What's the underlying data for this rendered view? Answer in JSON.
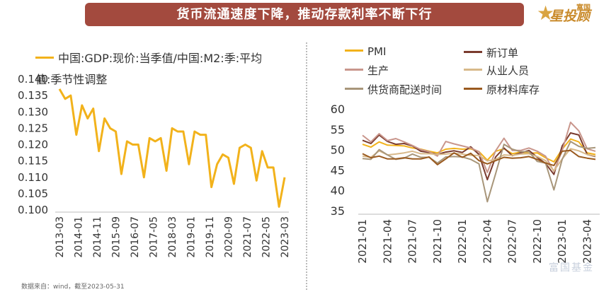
{
  "header": {
    "title": "货币流通速度下降，推动存款利率不断下行"
  },
  "logo": {
    "brand_small": "富国",
    "brand_big": "星投顾"
  },
  "footnote": "数据来自：wind，截至2023-05-31",
  "watermark": "富国基金",
  "colors": {
    "banner": "#a34a3e",
    "pmi": "#f2b21b",
    "new_orders": "#7a3b2e",
    "production": "#c9968c",
    "employment": "#d8b98a",
    "supplier": "#a8967a",
    "raw_inventory": "#9a5a1f"
  },
  "chart_data": [
    {
      "type": "line",
      "legend_text": "中国:GDP:现价:当季值/中国:M2:季:平均值:季节性调整",
      "legend_line1": "中国:GDP:现价:当季值/中国:M2:季:平均",
      "legend_line2": "值:季节性调整",
      "ylim": [
        0.1,
        0.14
      ],
      "yticks": [
        "0.140",
        "0.135",
        "0.130",
        "0.125",
        "0.120",
        "0.115",
        "0.110",
        "0.105",
        "0.100"
      ],
      "xticks": [
        "2013-03",
        "2014-01",
        "2014-11",
        "2015-09",
        "2016-07",
        "2017-05",
        "2018-03",
        "2019-01",
        "2019-11",
        "2020-09",
        "2021-07",
        "2022-05",
        "2023-03"
      ],
      "series": [
        {
          "name": "中国:GDP:现价:当季值/中国:M2:季:平均值:季节性调整",
          "values": [
            0.137,
            0.134,
            0.135,
            0.123,
            0.132,
            0.128,
            0.131,
            0.118,
            0.128,
            0.125,
            0.124,
            0.111,
            0.121,
            0.12,
            0.12,
            0.11,
            0.122,
            0.121,
            0.122,
            0.112,
            0.125,
            0.124,
            0.124,
            0.114,
            0.124,
            0.123,
            0.123,
            0.107,
            0.114,
            0.117,
            0.116,
            0.108,
            0.119,
            0.12,
            0.119,
            0.109,
            0.118,
            0.113,
            0.113,
            0.101,
            0.11
          ]
        }
      ]
    },
    {
      "type": "line",
      "ylim": [
        35,
        60
      ],
      "yticks": [
        "60",
        "55",
        "50",
        "45",
        "40",
        "35"
      ],
      "xticks": [
        "2021-01",
        "2021-04",
        "2021-07",
        "2021-10",
        "2022-01",
        "2022-04",
        "2022-07",
        "2022-10",
        "2023-01",
        "2023-04"
      ],
      "legend": [
        "PMI",
        "新订单",
        "生产",
        "从业人员",
        "供货商配送时间",
        "原材料库存"
      ],
      "series": [
        {
          "name": "PMI",
          "values": [
            51.3,
            50.6,
            51.9,
            51.1,
            51.0,
            50.9,
            50.4,
            50.1,
            49.6,
            49.2,
            50.1,
            50.3,
            50.1,
            50.2,
            49.5,
            47.4,
            49.6,
            50.2,
            49.0,
            49.4,
            49.1,
            49.2,
            48.0,
            47.0,
            50.1,
            52.6,
            51.9,
            49.2,
            48.8
          ]
        },
        {
          "name": "新订单",
          "values": [
            52.3,
            51.5,
            53.6,
            52.0,
            51.3,
            51.5,
            50.9,
            49.6,
            49.3,
            48.8,
            49.4,
            49.7,
            49.3,
            50.7,
            48.8,
            42.6,
            48.2,
            50.4,
            48.5,
            49.2,
            49.8,
            48.1,
            46.6,
            43.9,
            50.9,
            54.1,
            53.6,
            48.8,
            48.3
          ]
        },
        {
          "name": "生产",
          "values": [
            53.5,
            51.9,
            53.9,
            52.2,
            52.7,
            51.9,
            51.0,
            50.0,
            49.5,
            48.4,
            52.0,
            51.4,
            50.9,
            50.4,
            49.5,
            44.4,
            49.7,
            52.8,
            49.8,
            49.8,
            50.4,
            49.6,
            48.4,
            44.6,
            49.8,
            56.7,
            54.6,
            50.2,
            49.6
          ]
        },
        {
          "name": "从业人员",
          "values": [
            48.4,
            48.1,
            49.7,
            48.7,
            48.9,
            49.2,
            49.6,
            49.0,
            49.0,
            48.8,
            48.9,
            49.1,
            48.9,
            48.6,
            48.6,
            47.2,
            47.6,
            48.7,
            48.6,
            48.9,
            49.0,
            48.3,
            47.3,
            44.8,
            47.7,
            50.2,
            49.7,
            48.8,
            48.4
          ]
        },
        {
          "name": "供货商配送时间",
          "values": [
            47.8,
            47.6,
            50.0,
            48.7,
            47.6,
            47.9,
            48.9,
            48.1,
            48.1,
            46.7,
            48.2,
            48.3,
            48.2,
            47.6,
            46.5,
            37.2,
            44.1,
            51.3,
            50.1,
            49.5,
            49.5,
            47.1,
            46.7,
            40.1,
            47.6,
            52.0,
            50.8,
            50.3,
            50.5
          ]
        },
        {
          "name": "原材料库存",
          "values": [
            49.0,
            48.0,
            48.4,
            47.7,
            47.7,
            48.0,
            47.7,
            47.7,
            48.2,
            46.3,
            47.7,
            49.2,
            48.1,
            49.1,
            47.3,
            46.5,
            47.3,
            48.1,
            47.9,
            48.0,
            48.3,
            47.6,
            46.7,
            46.1,
            49.6,
            49.8,
            48.3,
            47.9,
            47.6
          ]
        }
      ]
    }
  ]
}
